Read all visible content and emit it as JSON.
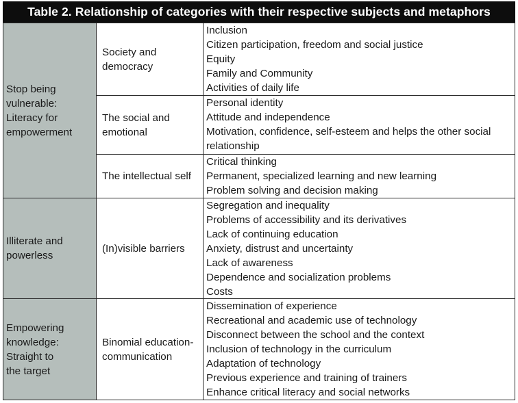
{
  "title": "Table 2. Relationship of categories with their respective subjects and metaphors",
  "colors": {
    "header_bg": "#0d0d0d",
    "category_bg": "#b5bebb",
    "border": "#2a2a2a"
  },
  "groups": [
    {
      "category": "Stop being vulnerable: Literacy for empowerment",
      "category_lines": [
        "Stop being",
        "vulnerable:",
        "Literacy for",
        "empowerment"
      ],
      "subjects": [
        {
          "name_lines": [
            "Society and",
            "democracy"
          ],
          "metaphors": [
            "Inclusion",
            "Citizen participation, freedom and social justice",
            "Equity",
            "Family and Community",
            "Activities of daily life"
          ]
        },
        {
          "name_lines": [
            "The social and",
            "emotional"
          ],
          "metaphors": [
            "Personal identity",
            "Attitude and independence",
            "Motivation, confidence, self-esteem and helps the other social",
            "relationship"
          ]
        },
        {
          "name_lines": [
            "The intellectual self"
          ],
          "metaphors": [
            "Critical thinking",
            "Permanent, specialized learning and new learning",
            "Problem solving and decision making"
          ]
        }
      ]
    },
    {
      "category_lines": [
        "Illiterate and",
        "powerless"
      ],
      "subjects": [
        {
          "name_lines": [
            "(In)visible barriers"
          ],
          "metaphors": [
            "Segregation and inequality",
            "Problems of accessibility and its derivatives",
            "Lack of continuing education",
            "Anxiety, distrust and uncertainty",
            "Lack of awareness",
            "Dependence and socialization problems",
            "Costs"
          ]
        }
      ]
    },
    {
      "category_lines": [
        "Empowering",
        "knowledge:",
        "Straight to",
        "the target"
      ],
      "subjects": [
        {
          "name_lines": [
            "Binomial education-",
            "communication"
          ],
          "metaphors": [
            "Dissemination of experience",
            "Recreational and academic use of technology",
            "Disconnect between the school and the context",
            "Inclusion of technology in the curriculum",
            "Adaptation of technology",
            "Previous experience and training of trainers",
            "Enhance critical literacy and social networks"
          ]
        }
      ]
    }
  ]
}
